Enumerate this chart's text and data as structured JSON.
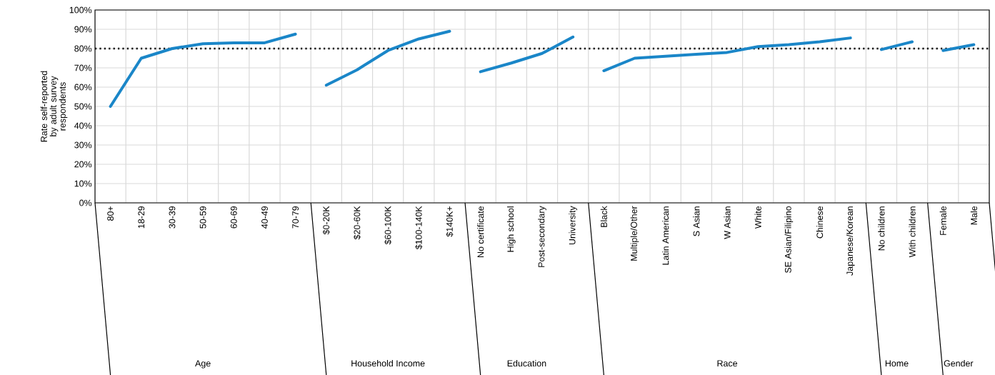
{
  "chart_data": {
    "type": "line",
    "ylabel": "Rate self-reported by adult survey respondents",
    "categories": [
      "80+",
      "18-29",
      "30-39",
      "50-59",
      "60-69",
      "40-49",
      "70-79",
      "$0-20K",
      "$20-60K",
      "$60-100K",
      "$100-140K",
      "$140K+",
      "No certificate",
      "High school",
      "Post-secondary",
      "University",
      "Black",
      "Multiple/Other",
      "Latin American",
      "S Asian",
      "W Asian",
      "White",
      "SE Asian/Filipino",
      "Chinese",
      "Japanese/Korean",
      "No children",
      "With children",
      "Female",
      "Male"
    ],
    "series": [
      {
        "color": "#1a86c8",
        "values": [
          50,
          75,
          80,
          82.5,
          83,
          83,
          87.5,
          null,
          null,
          null,
          null,
          null,
          null,
          null,
          null,
          null,
          null,
          null,
          null,
          null,
          null,
          null,
          null,
          null,
          null,
          null,
          null,
          null,
          null
        ]
      },
      {
        "color": "#1a86c8",
        "values": [
          null,
          null,
          null,
          null,
          null,
          null,
          null,
          61,
          69,
          79,
          85,
          89,
          null,
          null,
          null,
          null,
          null,
          null,
          null,
          null,
          null,
          null,
          null,
          null,
          null,
          null,
          null,
          null,
          null
        ]
      },
      {
        "color": "#1a86c8",
        "values": [
          null,
          null,
          null,
          null,
          null,
          null,
          null,
          null,
          null,
          null,
          null,
          null,
          68,
          72.5,
          77.5,
          86,
          null,
          null,
          null,
          null,
          null,
          null,
          null,
          null,
          null,
          null,
          null,
          null,
          null
        ]
      },
      {
        "color": "#1a86c8",
        "values": [
          null,
          null,
          null,
          null,
          null,
          null,
          null,
          null,
          null,
          null,
          null,
          null,
          null,
          null,
          null,
          null,
          68.5,
          75,
          76,
          77,
          78,
          81,
          82,
          83.5,
          85.5,
          null,
          null,
          null,
          null
        ]
      },
      {
        "color": "#1a86c8",
        "values": [
          null,
          null,
          null,
          null,
          null,
          null,
          null,
          null,
          null,
          null,
          null,
          null,
          null,
          null,
          null,
          null,
          null,
          null,
          null,
          null,
          null,
          null,
          null,
          null,
          null,
          79.5,
          83.5,
          null,
          null
        ]
      },
      {
        "color": "#1a86c8",
        "values": [
          null,
          null,
          null,
          null,
          null,
          null,
          null,
          null,
          null,
          null,
          null,
          null,
          null,
          null,
          null,
          null,
          null,
          null,
          null,
          null,
          null,
          null,
          null,
          null,
          null,
          null,
          null,
          79,
          82
        ]
      }
    ],
    "annotations": [
      "Age",
      "Household Income",
      "Education",
      "Race",
      "Home",
      "Gender"
    ],
    "ylim": [
      0,
      100
    ],
    "yticks": [
      {
        "value": 0,
        "label": "0%"
      },
      {
        "value": 10,
        "label": "10%"
      },
      {
        "value": 20,
        "label": "20%"
      },
      {
        "value": 30,
        "label": "30%"
      },
      {
        "value": 40,
        "label": "40%"
      },
      {
        "value": 50,
        "label": "50%"
      },
      {
        "value": 60,
        "label": "60%"
      },
      {
        "value": 70,
        "label": "70%"
      },
      {
        "value": 80,
        "label": "80%"
      },
      {
        "value": 90,
        "label": "90%"
      },
      {
        "value": 100,
        "label": "100%"
      }
    ],
    "ref_lines": [
      {
        "axis": "y",
        "value": 80,
        "color": "#000000",
        "line_style": "dotted"
      }
    ],
    "grid": true
  }
}
